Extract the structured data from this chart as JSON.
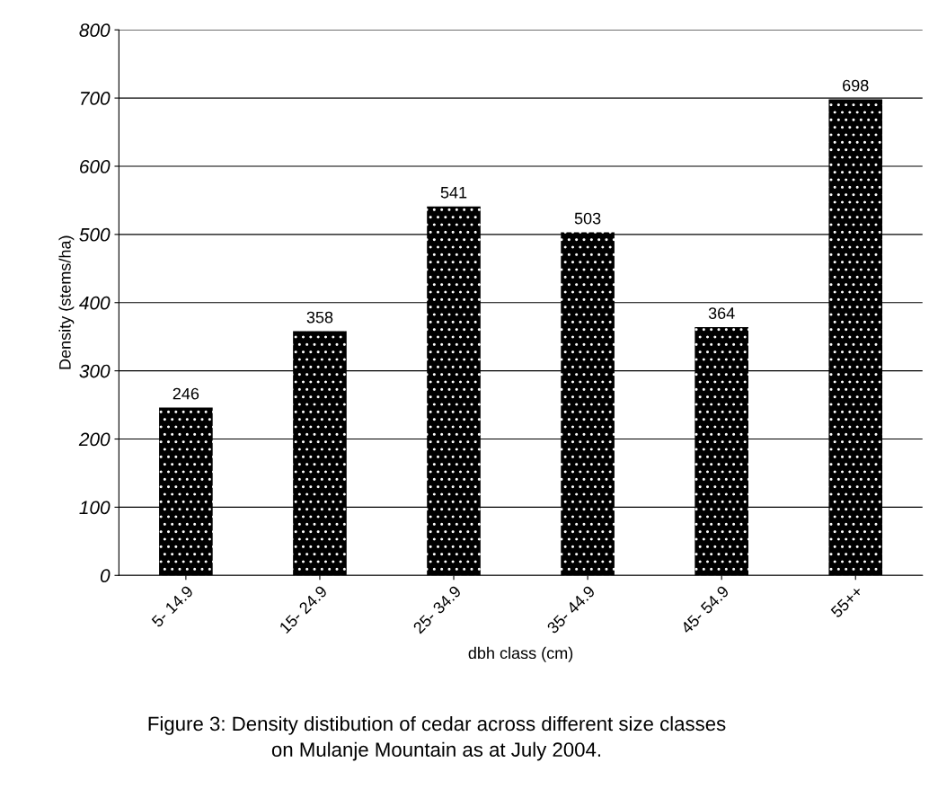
{
  "chart_data": {
    "type": "bar",
    "categories": [
      "5- 14.9",
      "15- 24.9",
      "25- 34.9",
      "35- 44.9",
      "45- 54.9",
      "55++"
    ],
    "values": [
      246,
      358,
      541,
      503,
      364,
      698
    ],
    "color": "#000000",
    "xlabel": "dbh class (cm)",
    "ylabel": "Density (stems/ha)",
    "ylim": [
      0,
      800
    ],
    "yticks": [
      0,
      100,
      200,
      300,
      400,
      500,
      600,
      700,
      800
    ],
    "grid": "y",
    "data_labels": true,
    "legend": false,
    "annotations": [
      "Figure 3: Density distibution of cedar across different size classes\non Mulanje Mountain as at July 2004."
    ]
  }
}
